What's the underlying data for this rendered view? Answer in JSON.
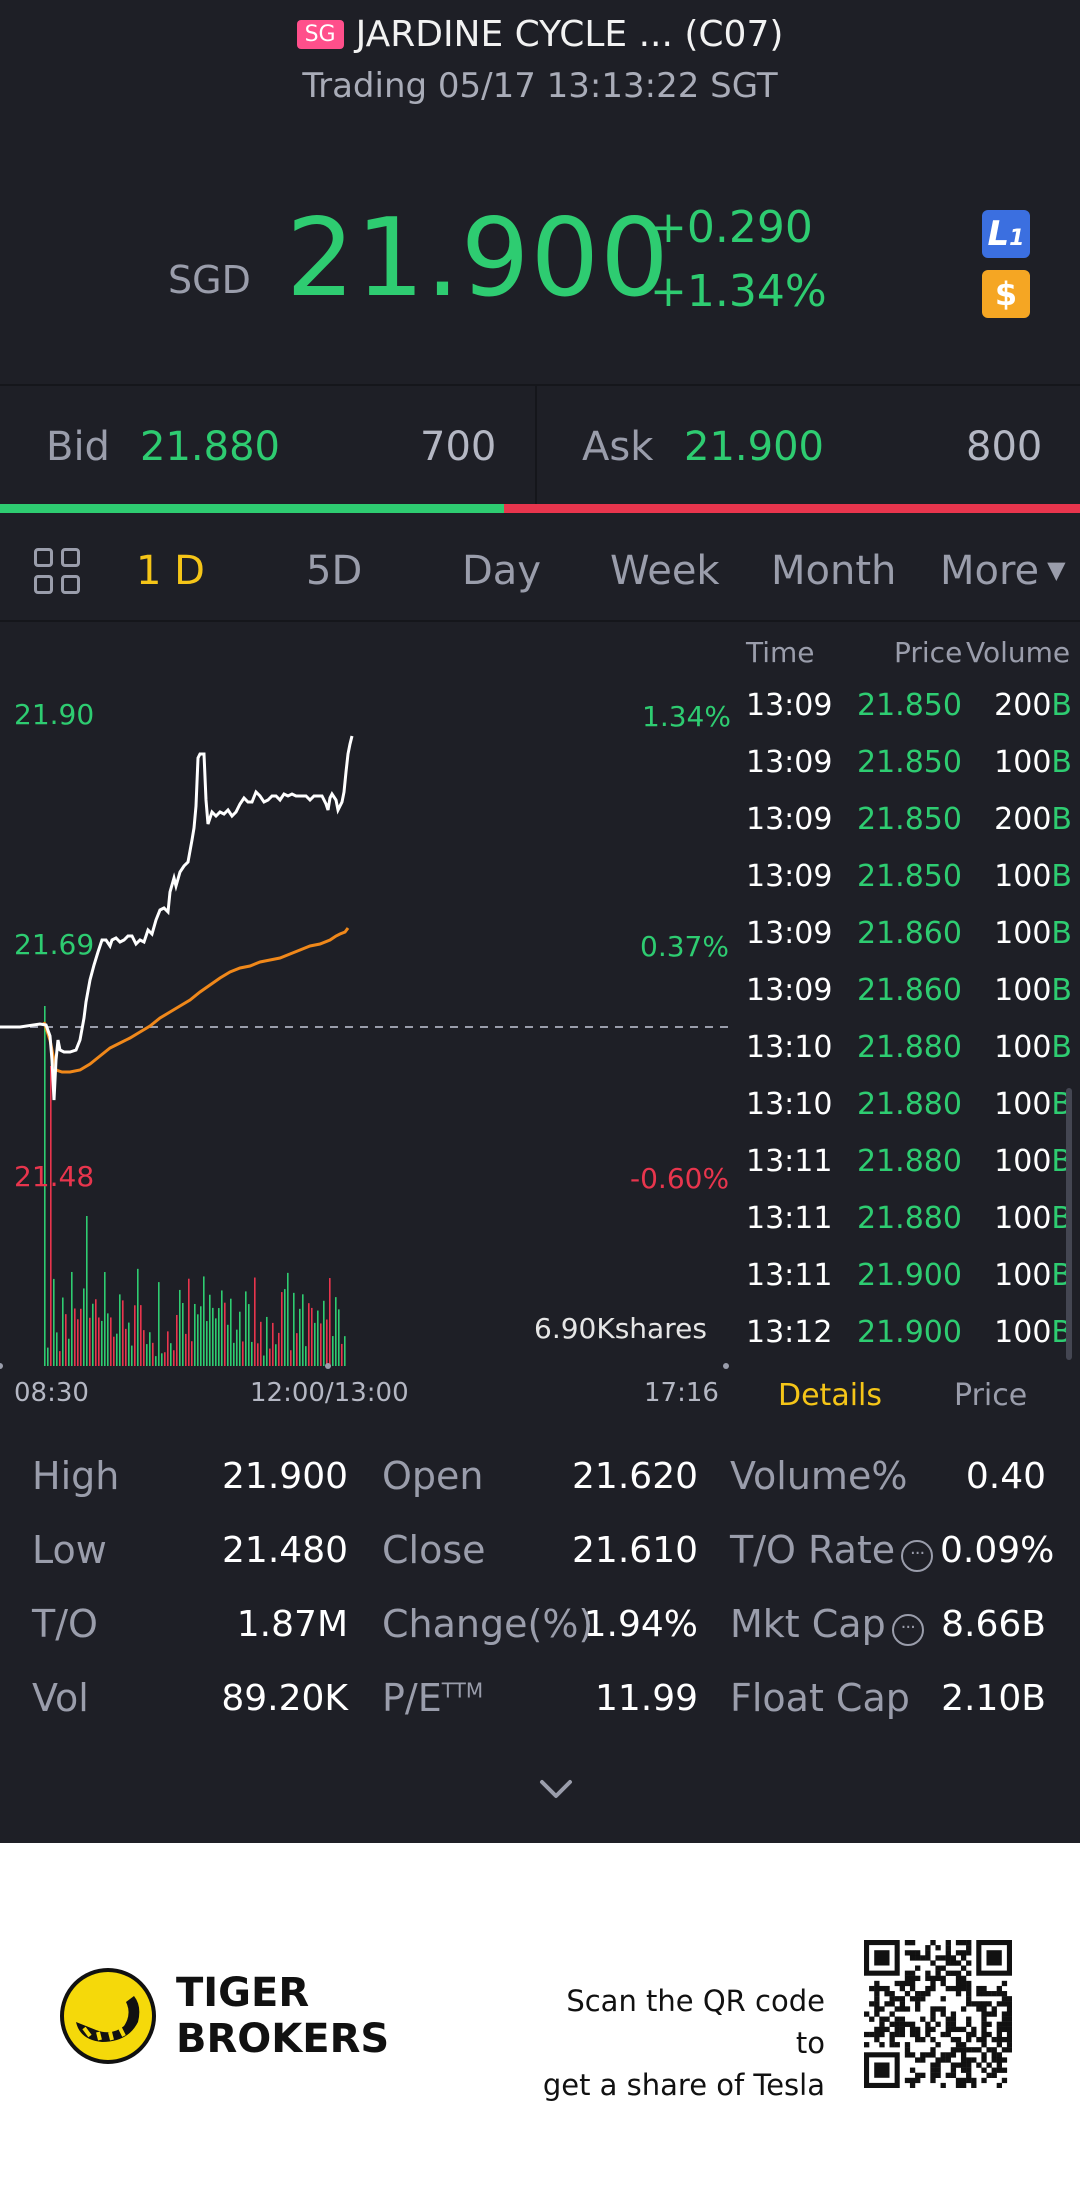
{
  "header": {
    "market_badge": "SG",
    "title": "JARDINE CYCLE ... (C07)",
    "subtitle": "Trading 05/17 13:13:22 SGT"
  },
  "quote": {
    "currency": "SGD",
    "price": "21.900",
    "change": "+0.290",
    "change_pct": "+1.34%",
    "level_badge": "L",
    "level_badge_sub": "1",
    "dollar_badge": "$"
  },
  "bidask": {
    "bid_label": "Bid",
    "bid_price": "21.880",
    "bid_size": "700",
    "ask_label": "Ask",
    "ask_price": "21.900",
    "ask_size": "800",
    "bid_ratio": 0.467
  },
  "tabs": [
    "1 D",
    "5D",
    "Day",
    "Week",
    "Month",
    "More"
  ],
  "chart": {
    "y_high": "21.90",
    "y_mid": "21.69",
    "y_low": "21.48",
    "pct_high": "1.34%",
    "pct_mid": "0.37%",
    "pct_low": "-0.60%",
    "volume_label": "6.90Kshares",
    "x_start": "08:30",
    "x_break": "12:00/13:00",
    "x_end": "17:16"
  },
  "trades": {
    "headers": {
      "time": "Time",
      "price": "Price",
      "volume": "Volume"
    },
    "rows": [
      {
        "time": "13:09",
        "price": "21.850",
        "vol": "200",
        "side": "B"
      },
      {
        "time": "13:09",
        "price": "21.850",
        "vol": "100",
        "side": "B"
      },
      {
        "time": "13:09",
        "price": "21.850",
        "vol": "200",
        "side": "B"
      },
      {
        "time": "13:09",
        "price": "21.850",
        "vol": "100",
        "side": "B"
      },
      {
        "time": "13:09",
        "price": "21.860",
        "vol": "100",
        "side": "B"
      },
      {
        "time": "13:09",
        "price": "21.860",
        "vol": "100",
        "side": "B"
      },
      {
        "time": "13:10",
        "price": "21.880",
        "vol": "100",
        "side": "B"
      },
      {
        "time": "13:10",
        "price": "21.880",
        "vol": "100",
        "side": "B"
      },
      {
        "time": "13:11",
        "price": "21.880",
        "vol": "100",
        "side": "B"
      },
      {
        "time": "13:11",
        "price": "21.880",
        "vol": "100",
        "side": "B"
      },
      {
        "time": "13:11",
        "price": "21.900",
        "vol": "100",
        "side": "B"
      },
      {
        "time": "13:12",
        "price": "21.900",
        "vol": "100",
        "side": "B"
      }
    ],
    "tab_details": "Details",
    "tab_price": "Price"
  },
  "stats": {
    "high_label": "High",
    "high": "21.900",
    "low_label": "Low",
    "low": "21.480",
    "to_label": "T/O",
    "to": "1.87M",
    "vol_label": "Vol",
    "vol": "89.20K",
    "open_label": "Open",
    "open": "21.620",
    "close_label": "Close",
    "close": "21.610",
    "change_label": "Change(%)",
    "change": "1.94%",
    "pe_label": "P/E",
    "pe_sup": "TTM",
    "pe": "11.99",
    "volpct_label": "Volume%",
    "volpct": "0.40",
    "torate_label": "T/O Rate",
    "torate": "0.09%",
    "mktcap_label": "Mkt Cap",
    "mktcap": "8.66B",
    "floatcap_label": "Float Cap",
    "floatcap": "2.10B"
  },
  "footer": {
    "brand_line1": "TIGER",
    "brand_line2": "BROKERS",
    "scan_line1": "Scan the QR code to",
    "scan_line2": "get a share of Tesla"
  },
  "colors": {
    "background": "#1e1f26",
    "up_green": "#2ecc71",
    "down_red": "#e8354d",
    "active_tab": "#f5c518",
    "avg_line": "#f0881a"
  }
}
